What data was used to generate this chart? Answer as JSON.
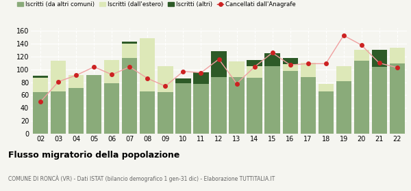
{
  "years": [
    "02",
    "03",
    "04",
    "05",
    "06",
    "07",
    "08",
    "09",
    "10",
    "11",
    "12",
    "13",
    "14",
    "15",
    "16",
    "17",
    "18",
    "19",
    "20",
    "21",
    "22"
  ],
  "iscritti_comuni": [
    65,
    66,
    71,
    91,
    79,
    118,
    66,
    65,
    79,
    77,
    88,
    88,
    87,
    105,
    98,
    88,
    66,
    82,
    114,
    104,
    109
  ],
  "iscritti_estero": [
    22,
    48,
    20,
    0,
    36,
    22,
    83,
    40,
    0,
    0,
    0,
    25,
    18,
    0,
    10,
    22,
    11,
    23,
    17,
    0,
    25
  ],
  "iscritti_altri": [
    3,
    0,
    0,
    0,
    0,
    3,
    0,
    0,
    7,
    19,
    40,
    0,
    10,
    20,
    10,
    0,
    0,
    0,
    0,
    27,
    0
  ],
  "cancellati": [
    50,
    81,
    91,
    104,
    92,
    104,
    86,
    74,
    97,
    95,
    116,
    78,
    104,
    126,
    107,
    109,
    109,
    153,
    138,
    110,
    103
  ],
  "color_comuni": "#8aab7a",
  "color_estero": "#dde8b8",
  "color_altri": "#2d5a27",
  "color_cancellati": "#cc2222",
  "ylim": [
    0,
    165
  ],
  "yticks": [
    0,
    20,
    40,
    60,
    80,
    100,
    120,
    140,
    160
  ],
  "legend_labels": [
    "Iscritti (da altri comuni)",
    "Iscritti (dall'estero)",
    "Iscritti (altri)",
    "Cancellati dall'Anagrafe"
  ],
  "title": "Flusso migratorio della popolazione",
  "subtitle": "COMUNE DI RONCÀ (VR) - Dati ISTAT (bilancio demografico 1 gen-31 dic) - Elaborazione TUTTITALIA.IT",
  "bg_color": "#f5f5f0"
}
